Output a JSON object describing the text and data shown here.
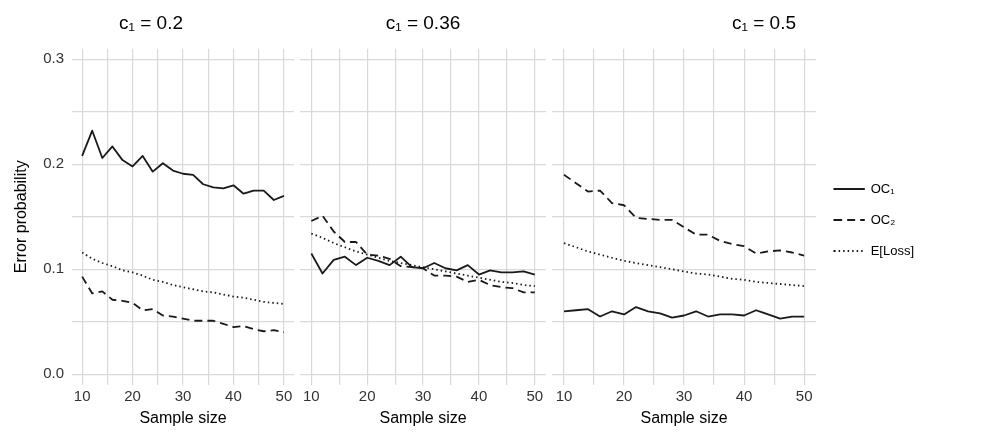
{
  "chart_data": [
    {
      "type": "line",
      "title": "c₁ = 0.2",
      "xlabel": "Sample size",
      "ylabel": "Error probability",
      "x": [
        10,
        12,
        14,
        16,
        18,
        20,
        22,
        24,
        26,
        28,
        30,
        32,
        34,
        36,
        38,
        40,
        42,
        44,
        46,
        48,
        50
      ],
      "xlim": [
        8,
        52
      ],
      "ylim": [
        -0.01,
        0.31
      ],
      "xticks": [
        10,
        {
          "value": 15,
          "label": null
        },
        20,
        {
          "value": 25,
          "label": null
        },
        30,
        {
          "value": 35,
          "label": null
        },
        40,
        {
          "value": 45,
          "label": null
        },
        50
      ],
      "yticks": [
        {
          "value": 0,
          "label": "0.0"
        },
        {
          "value": 0.05,
          "label": null
        },
        0.1,
        {
          "value": 0.15,
          "label": null
        },
        0.2,
        {
          "value": 0.25,
          "label": null
        },
        0.3
      ],
      "grid": true,
      "legend": false,
      "marker": "none",
      "series": [
        {
          "color": "#1a1a1a",
          "line_style": "solid",
          "values": [
            0.208,
            0.232,
            0.206,
            0.217,
            0.204,
            0.198,
            0.208,
            0.193,
            0.201,
            0.194,
            0.191,
            0.19,
            0.181,
            0.178,
            0.177,
            0.18,
            0.172,
            0.175,
            0.175,
            0.166,
            0.17
          ]
        },
        {
          "color": "#1a1a1a",
          "line_style": "dashed",
          "values": [
            0.093,
            0.077,
            0.079,
            0.071,
            0.07,
            0.068,
            0.061,
            0.062,
            0.056,
            0.055,
            0.053,
            0.051,
            0.051,
            0.051,
            0.048,
            0.045,
            0.046,
            0.043,
            0.041,
            0.042,
            0.04
          ]
        },
        {
          "color": "#1a1a1a",
          "line_style": "dotted",
          "values": [
            0.116,
            0.11,
            0.106,
            0.103,
            0.099,
            0.097,
            0.094,
            0.09,
            0.088,
            0.085,
            0.083,
            0.081,
            0.079,
            0.078,
            0.076,
            0.074,
            0.073,
            0.071,
            0.069,
            0.068,
            0.067
          ]
        }
      ]
    },
    {
      "type": "line",
      "title": "c₁ = 0.36",
      "xlabel": "Sample size",
      "x": [
        10,
        12,
        14,
        16,
        18,
        20,
        22,
        24,
        26,
        28,
        30,
        32,
        34,
        36,
        38,
        40,
        42,
        44,
        46,
        48,
        50
      ],
      "xlim": [
        8,
        52
      ],
      "ylim": [
        -0.01,
        0.31
      ],
      "xticks": [
        10,
        {
          "value": 15,
          "label": null
        },
        20,
        {
          "value": 25,
          "label": null
        },
        30,
        {
          "value": 35,
          "label": null
        },
        40,
        {
          "value": 45,
          "label": null
        },
        50
      ],
      "yticks": [
        0,
        0.05,
        0.1,
        0.15,
        0.2,
        0.25,
        0.3
      ],
      "tick_labels": "x",
      "grid": true,
      "legend": false,
      "marker": "none",
      "series": [
        {
          "color": "#1a1a1a",
          "line_style": "solid",
          "values": [
            0.115,
            0.096,
            0.109,
            0.112,
            0.104,
            0.111,
            0.108,
            0.104,
            0.112,
            0.102,
            0.101,
            0.106,
            0.101,
            0.099,
            0.104,
            0.095,
            0.099,
            0.097,
            0.097,
            0.098,
            0.095
          ]
        },
        {
          "color": "#1a1a1a",
          "line_style": "dashed",
          "values": [
            0.146,
            0.151,
            0.136,
            0.126,
            0.126,
            0.114,
            0.113,
            0.11,
            0.103,
            0.102,
            0.101,
            0.094,
            0.094,
            0.093,
            0.088,
            0.09,
            0.085,
            0.083,
            0.082,
            0.078,
            0.078
          ]
        },
        {
          "color": "#1a1a1a",
          "line_style": "dotted",
          "values": [
            0.134,
            0.13,
            0.125,
            0.121,
            0.117,
            0.114,
            0.111,
            0.108,
            0.106,
            0.104,
            0.102,
            0.1,
            0.098,
            0.096,
            0.094,
            0.092,
            0.09,
            0.088,
            0.087,
            0.085,
            0.084
          ]
        }
      ]
    },
    {
      "type": "line",
      "title": "c₁ = 0.5",
      "xlabel": "Sample size",
      "x": [
        10,
        12,
        14,
        16,
        18,
        20,
        22,
        24,
        26,
        28,
        30,
        32,
        34,
        36,
        38,
        40,
        42,
        44,
        46,
        48,
        50
      ],
      "xlim": [
        8,
        52
      ],
      "ylim": [
        -0.01,
        0.31
      ],
      "xticks": [
        10,
        {
          "value": 15,
          "label": null
        },
        20,
        {
          "value": 25,
          "label": null
        },
        30,
        {
          "value": 35,
          "label": null
        },
        40,
        {
          "value": 45,
          "label": null
        },
        50
      ],
      "yticks": [
        0,
        0.05,
        0.1,
        0.15,
        0.2,
        0.25,
        0.3
      ],
      "tick_labels": "x",
      "grid": true,
      "legend": "right",
      "marker": "none",
      "series": [
        {
          "name": "OC₁",
          "color": "#1a1a1a",
          "line_style": "solid",
          "values": [
            0.06,
            0.061,
            0.062,
            0.055,
            0.06,
            0.057,
            0.064,
            0.06,
            0.058,
            0.054,
            0.056,
            0.06,
            0.055,
            0.057,
            0.057,
            0.056,
            0.061,
            0.057,
            0.053,
            0.055,
            0.055
          ]
        },
        {
          "name": "OC₂",
          "color": "#1a1a1a",
          "line_style": "dashed",
          "values": [
            0.19,
            0.182,
            0.174,
            0.175,
            0.163,
            0.161,
            0.149,
            0.148,
            0.147,
            0.147,
            0.14,
            0.133,
            0.133,
            0.127,
            0.124,
            0.122,
            0.115,
            0.117,
            0.118,
            0.116,
            0.113
          ]
        },
        {
          "name": "E[Loss]",
          "color": "#1a1a1a",
          "line_style": "dotted",
          "values": [
            0.125,
            0.121,
            0.117,
            0.114,
            0.111,
            0.108,
            0.106,
            0.104,
            0.102,
            0.1,
            0.098,
            0.096,
            0.095,
            0.093,
            0.091,
            0.09,
            0.088,
            0.087,
            0.086,
            0.085,
            0.084
          ]
        }
      ]
    }
  ]
}
